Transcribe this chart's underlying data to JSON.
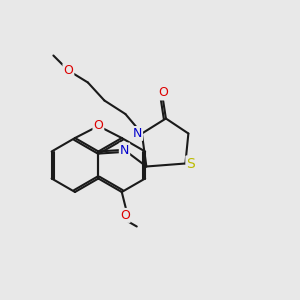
{
  "bg_color": "#e8e8e8",
  "bond_color": "#1a1a1a",
  "bond_lw": 1.5,
  "atom_colors": {
    "O": "#dd0000",
    "N": "#0000cc",
    "S": "#bbbb00",
    "C": "#1a1a1a"
  },
  "font_size": 9.0
}
